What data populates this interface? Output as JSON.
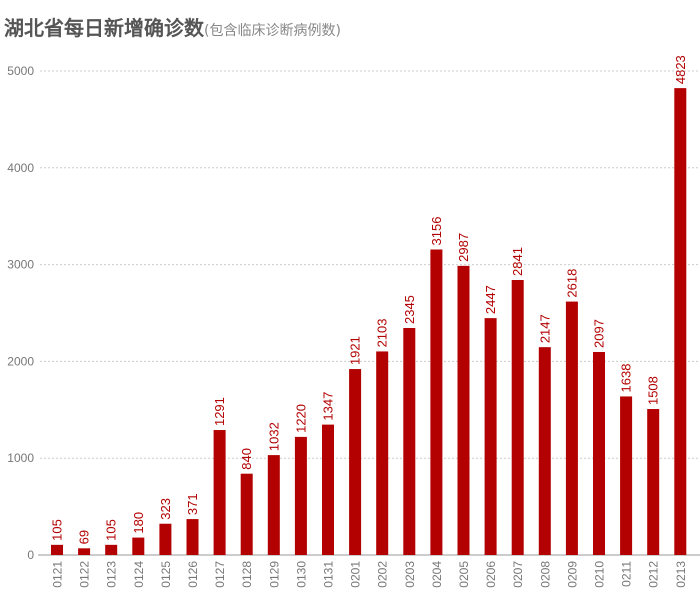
{
  "chart_data": {
    "type": "bar",
    "title": "湖北省每日新增确诊数",
    "subtitle": "(包含临床诊断病例数)",
    "xlabel": "",
    "ylabel": "",
    "categories": [
      "0121",
      "0122",
      "0123",
      "0124",
      "0125",
      "0126",
      "0127",
      "0128",
      "0129",
      "0130",
      "0131",
      "0201",
      "0202",
      "0203",
      "0204",
      "0205",
      "0206",
      "0207",
      "0208",
      "0209",
      "0210",
      "0211",
      "0212",
      "0213"
    ],
    "values": [
      105,
      69,
      105,
      180,
      323,
      371,
      1291,
      840,
      1032,
      1220,
      1347,
      1921,
      2103,
      2345,
      3156,
      2987,
      2447,
      2841,
      2147,
      2618,
      2097,
      1638,
      1508,
      4823
    ],
    "ylim": [
      0,
      5000
    ],
    "yticks": [
      0,
      1000,
      2000,
      3000,
      4000,
      5000
    ],
    "grid": true,
    "data_labels": true,
    "colors": {
      "bar": "#b30000",
      "label": "#b30000",
      "axis_text": "#777777",
      "grid": "#cccccc"
    }
  }
}
